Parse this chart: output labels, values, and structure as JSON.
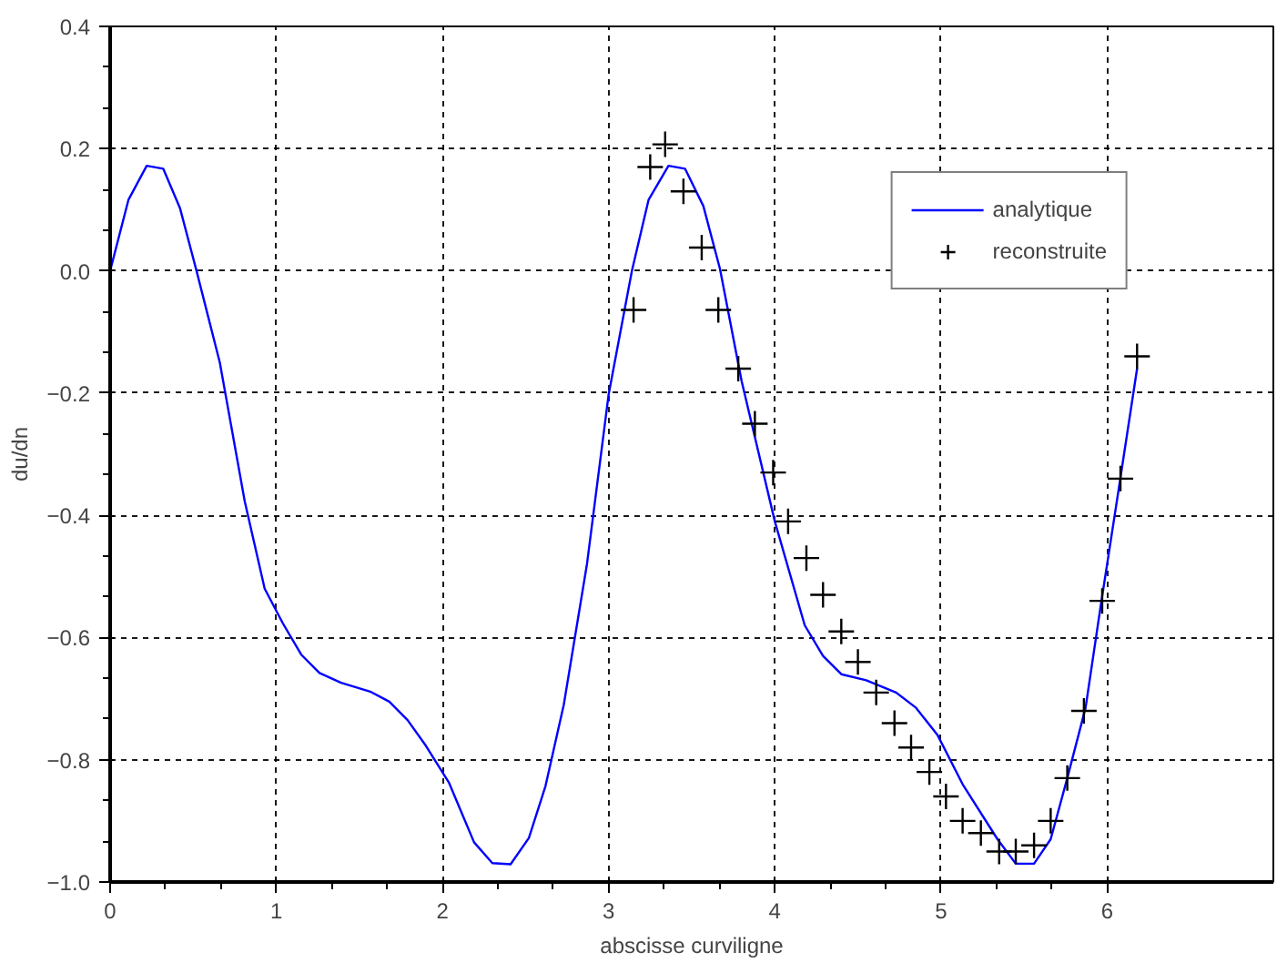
{
  "chart_data": {
    "type": "line",
    "xlabel": "abscisse curviligne",
    "ylabel": "du/dn",
    "xlim": [
      0,
      7
    ],
    "ylim": [
      -1.0,
      0.4
    ],
    "xticks": [
      0,
      1,
      2,
      3,
      4,
      5,
      6
    ],
    "yticks": [
      {
        "value": -1.0,
        "label": "−1.0"
      },
      {
        "value": -0.8,
        "label": "−0.8"
      },
      {
        "value": -0.6,
        "label": "−0.6"
      },
      {
        "value": -0.4,
        "label": "−0.4"
      },
      {
        "value": -0.2,
        "label": "−0.2"
      },
      {
        "value": 0.0,
        "label": "0.0"
      },
      {
        "value": 0.2,
        "label": "0.2"
      },
      {
        "value": 0.4,
        "label": "0.4"
      }
    ],
    "grid": true,
    "legend": "top right",
    "series": [
      {
        "name": "analytique",
        "color": "#0000ff",
        "line_style": "solid",
        "marker": "none",
        "x": [
          0,
          0.11,
          0.22,
          0.32,
          0.42,
          0.52,
          0.66,
          0.81,
          0.93,
          1.04,
          1.15,
          1.26,
          1.39,
          1.57,
          1.68,
          1.79,
          1.9,
          2.04,
          2.19,
          2.3,
          2.41,
          2.52,
          2.62,
          2.73,
          2.87,
          3.0,
          3.14,
          3.24,
          3.36,
          3.46,
          3.57,
          3.67,
          3.8,
          4.0,
          4.18,
          4.29,
          4.4,
          4.55,
          4.73,
          4.85,
          4.98,
          5.13,
          5.34,
          5.45,
          5.56,
          5.66,
          5.76,
          5.87,
          5.96,
          6.07,
          6.18
        ],
        "values": [
          0.0,
          0.116,
          0.172,
          0.167,
          0.103,
          0.0,
          -0.15,
          -0.377,
          -0.52,
          -0.577,
          -0.628,
          -0.658,
          -0.674,
          -0.689,
          -0.705,
          -0.735,
          -0.777,
          -0.838,
          -0.935,
          -0.969,
          -0.971,
          -0.928,
          -0.843,
          -0.71,
          -0.479,
          -0.202,
          0.0,
          0.116,
          0.172,
          0.167,
          0.106,
          0.003,
          -0.18,
          -0.41,
          -0.58,
          -0.63,
          -0.66,
          -0.67,
          -0.69,
          -0.715,
          -0.76,
          -0.84,
          -0.93,
          -0.97,
          -0.97,
          -0.93,
          -0.83,
          -0.715,
          -0.55,
          -0.356,
          -0.16
        ]
      },
      {
        "name": "reconstruite",
        "type": "scatter",
        "color": "#000000",
        "marker": "cross",
        "x": [
          3.15,
          3.25,
          3.34,
          3.45,
          3.56,
          3.66,
          3.78,
          3.88,
          3.99,
          4.08,
          4.19,
          4.29,
          4.4,
          4.5,
          4.61,
          4.72,
          4.82,
          4.93,
          5.03,
          5.13,
          5.24,
          5.35,
          5.45,
          5.56,
          5.66,
          5.76,
          5.86,
          5.97,
          6.08,
          6.18
        ],
        "values": [
          -0.064,
          0.17,
          0.207,
          0.13,
          0.038,
          -0.064,
          -0.16,
          -0.25,
          -0.33,
          -0.41,
          -0.47,
          -0.53,
          -0.59,
          -0.64,
          -0.69,
          -0.74,
          -0.78,
          -0.82,
          -0.86,
          -0.9,
          -0.92,
          -0.95,
          -0.95,
          -0.94,
          -0.9,
          -0.83,
          -0.72,
          -0.54,
          -0.34,
          -0.14
        ]
      }
    ]
  }
}
